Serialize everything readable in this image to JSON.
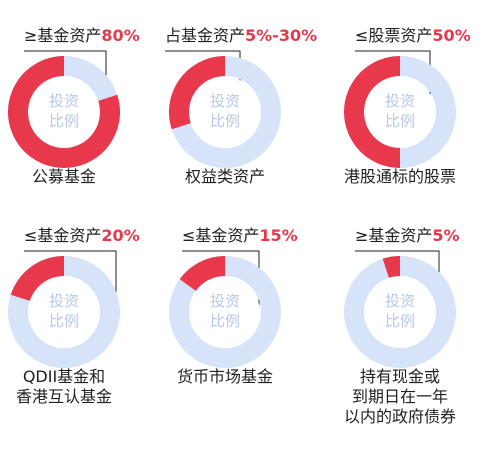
{
  "chart_data": [
    {
      "type": "pie",
      "name_label": "公募基金",
      "caption_prefix": "≥基金资产",
      "caption_value": "80%",
      "value": 80,
      "center_lines": [
        "投资",
        "比例"
      ]
    },
    {
      "type": "pie",
      "name_label": "权益类资产",
      "caption_prefix": "占基金资产",
      "caption_value": "5%-30%",
      "value": 30,
      "center_lines": [
        "投资",
        "比例"
      ]
    },
    {
      "type": "pie",
      "name_label": "港股通标的股票",
      "caption_prefix": "≤股票资产",
      "caption_value": "50%",
      "value": 50,
      "center_lines": [
        "投资",
        "比例"
      ]
    },
    {
      "type": "pie",
      "name_label": "QDII基金和\n香港互认基金",
      "caption_prefix": "≤基金资产",
      "caption_value": "20%",
      "value": 20,
      "center_lines": [
        "投资",
        "比例"
      ]
    },
    {
      "type": "pie",
      "name_label": "货币市场基金",
      "caption_prefix": "≤基金资产",
      "caption_value": "15%",
      "value": 15,
      "center_lines": [
        "投资",
        "比例"
      ]
    },
    {
      "type": "pie",
      "name_label": "持有现金或\n到期日在一年\n以内的政府债券",
      "caption_prefix": "≥基金资产",
      "caption_value": "5%",
      "value": 5,
      "center_lines": [
        "投资",
        "比例"
      ]
    }
  ],
  "colors": {
    "accent": "#e8384c",
    "track": "#d6e3f8",
    "center_text": "#b7c7e6",
    "label": "#222222"
  }
}
